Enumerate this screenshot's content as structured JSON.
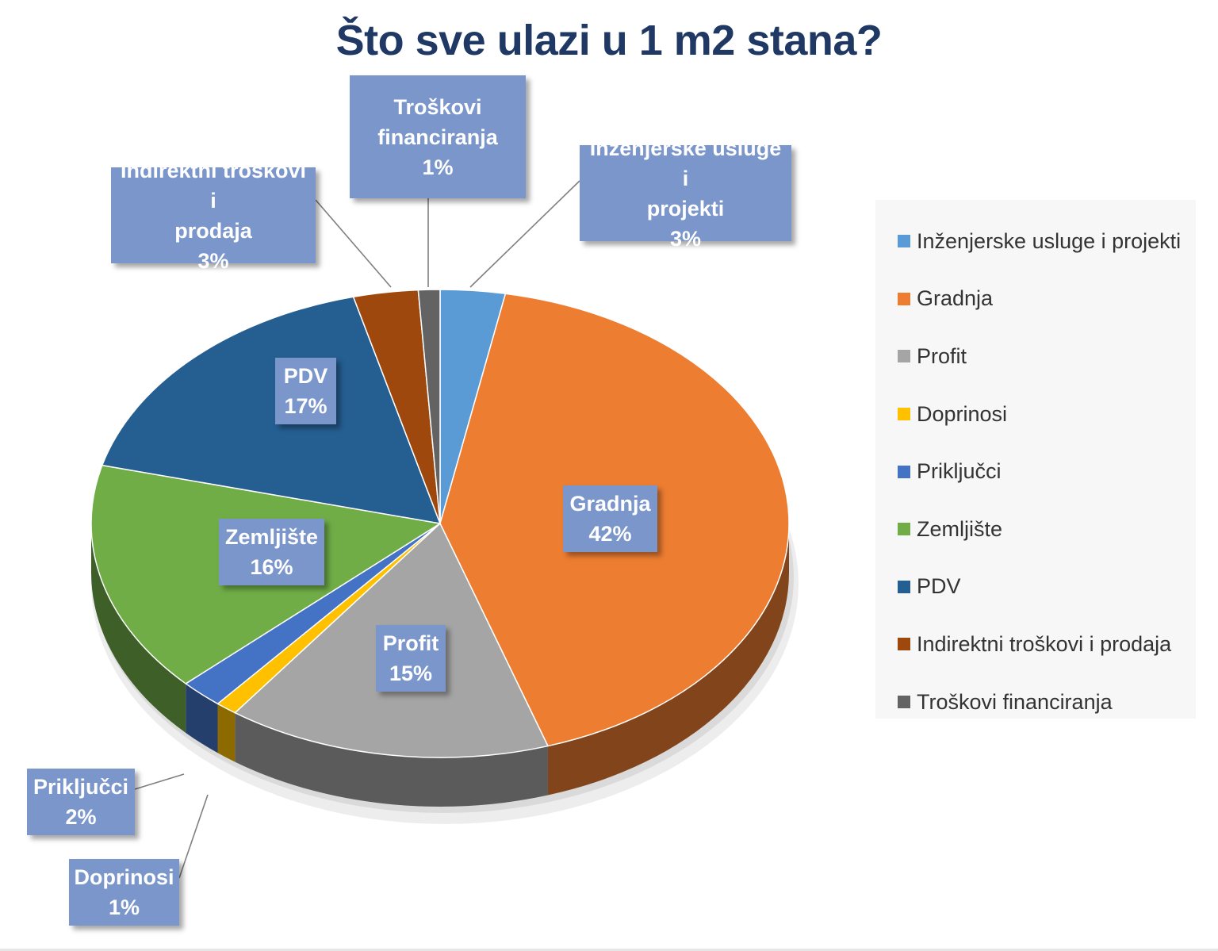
{
  "page": {
    "title": "Što sve ulazi u 1 m2 stana?"
  },
  "chart_data": {
    "type": "pie",
    "title": "Što sve ulazi u 1 m2 stana?",
    "unit": "%",
    "legend_position": "right",
    "three_d": true,
    "slices": [
      {
        "name": "Inženjerske usluge i projekti",
        "value": 3,
        "label": [
          "Inženjerske usluge i",
          "projekti",
          "3%"
        ],
        "color": "#5b9bd5"
      },
      {
        "name": "Gradnja",
        "value": 42,
        "label": [
          "Gradnja",
          "42%"
        ],
        "color": "#ed7d31"
      },
      {
        "name": "Profit",
        "value": 15,
        "label": [
          "Profit",
          "15%"
        ],
        "color": "#a5a5a5"
      },
      {
        "name": "Doprinosi",
        "value": 1,
        "label": [
          "Doprinosi",
          "1%"
        ],
        "color": "#ffc000"
      },
      {
        "name": "Priključci",
        "value": 2,
        "label": [
          "Priključci",
          "2%"
        ],
        "color": "#4472c4"
      },
      {
        "name": "Zemljište",
        "value": 16,
        "label": [
          "Zemljište",
          "16%"
        ],
        "color": "#70ad47"
      },
      {
        "name": "PDV",
        "value": 17,
        "label": [
          "PDV",
          "17%"
        ],
        "color": "#255e91"
      },
      {
        "name": "Indirektni troškovi i prodaja",
        "value": 3,
        "label": [
          "Indirektni troškovi i",
          "prodaja",
          "3%"
        ],
        "color": "#9e480e"
      },
      {
        "name": "Troškovi financiranja",
        "value": 1,
        "label": [
          "Troškovi",
          "financiranja",
          "1%"
        ],
        "color": "#636363"
      }
    ]
  }
}
